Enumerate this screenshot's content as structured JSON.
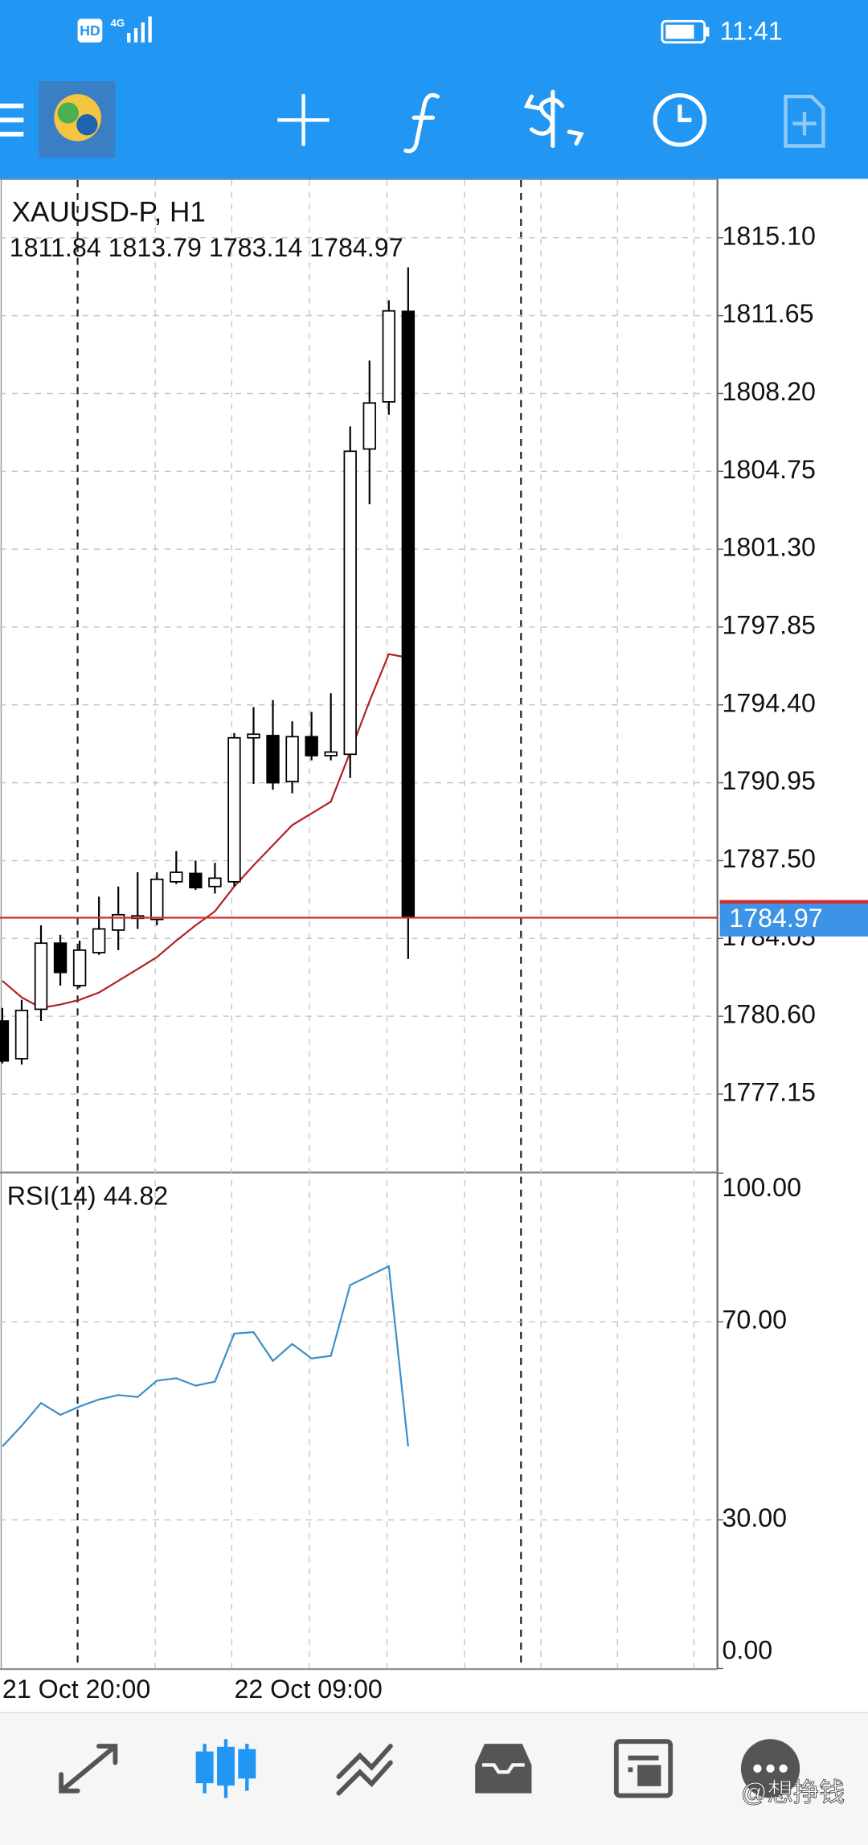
{
  "status_bar": {
    "network": "HD",
    "signal": "4G",
    "time": "11:41"
  },
  "chart_data": [
    {
      "type": "candlestick",
      "title": "XAUUSD-P, H1",
      "subtitle": "1811.84 1813.79 1783.14 1784.97",
      "categories": [
        "21 Oct 20:00",
        null,
        null,
        null,
        null,
        null,
        null,
        null,
        null,
        null,
        null,
        null,
        "22 Oct 09:00",
        null,
        null,
        null,
        null,
        null,
        null,
        null,
        null,
        null
      ],
      "open": [
        1780.39,
        1778.72,
        1780.91,
        1783.84,
        1781.96,
        1783.42,
        1784.42,
        1784.94,
        1784.89,
        1786.56,
        1786.93,
        1786.35,
        1786.56,
        1792.94,
        1793.04,
        1791.0,
        1792.99,
        1792.15,
        1792.21,
        1805.74,
        1807.83,
        1811.84
      ],
      "high": [
        1780.97,
        1781.33,
        1784.63,
        1784.21,
        1783.95,
        1785.9,
        1786.35,
        1786.98,
        1786.98,
        1787.92,
        1787.5,
        1787.4,
        1793.15,
        1794.3,
        1794.61,
        1793.67,
        1794.09,
        1794.92,
        1806.74,
        1809.66,
        1812.33,
        1813.79
      ],
      "low": [
        1778.51,
        1778.46,
        1780.39,
        1781.96,
        1781.86,
        1783.32,
        1783.53,
        1784.47,
        1784.63,
        1786.46,
        1786.2,
        1786.04,
        1786.35,
        1790.9,
        1790.64,
        1790.48,
        1791.94,
        1791.94,
        1791.16,
        1803.29,
        1807.26,
        1783.14
      ],
      "close": [
        1778.62,
        1780.86,
        1783.84,
        1782.54,
        1783.53,
        1784.47,
        1785.1,
        1785.05,
        1786.67,
        1786.98,
        1786.3,
        1786.72,
        1792.94,
        1793.1,
        1790.95,
        1792.99,
        1792.15,
        1792.31,
        1805.64,
        1807.78,
        1811.86,
        1784.97
      ],
      "up_color": "#ffffff",
      "down_color": "#000000",
      "overlay": {
        "color": "#b22222",
        "values": [
          1782.17,
          1781.44,
          1780.97,
          1781.12,
          1781.33,
          1781.65,
          1782.17,
          1782.69,
          1783.22,
          1783.95,
          1784.63,
          1785.25,
          1786.35,
          1787.29,
          1788.18,
          1789.07,
          1789.59,
          1790.11,
          1792.31,
          1794.56,
          1796.65,
          1796.49
        ]
      },
      "current_price": 1784.97,
      "current_price_color": "#d32f2f",
      "ylim": [
        1773.7,
        1817.66
      ],
      "yticks": [
        {
          "value": 1815.1,
          "label": "1815.10"
        },
        1811.65,
        {
          "value": 1808.2,
          "label": "1808.20"
        },
        1804.75,
        {
          "value": 1801.3,
          "label": "1801.30"
        },
        1797.85,
        {
          "value": 1794.4,
          "label": "1794.40"
        },
        1790.95,
        {
          "value": 1787.5,
          "label": "1787.50"
        },
        1784.05,
        {
          "value": 1780.6,
          "label": "1780.60"
        },
        1777.15
      ],
      "grid": true
    },
    {
      "type": "line",
      "title": "RSI(14) 44.82",
      "color": "#3a8fc8",
      "values": [
        44.8,
        49.0,
        53.6,
        51.2,
        52.9,
        54.3,
        55.2,
        54.8,
        58.1,
        58.6,
        57.1,
        57.9,
        67.6,
        67.9,
        62.1,
        65.5,
        62.6,
        63.1,
        77.4,
        79.3,
        81.2,
        44.82
      ],
      "ylim": [
        0,
        100
      ],
      "yticks": [
        {
          "value": 100,
          "label": "100.00"
        },
        {
          "value": 70,
          "label": "70.00"
        },
        {
          "value": 30,
          "label": "30.00"
        },
        {
          "value": 0,
          "label": "0.00"
        }
      ],
      "grid": true
    }
  ],
  "watermark": "@想挣钱"
}
